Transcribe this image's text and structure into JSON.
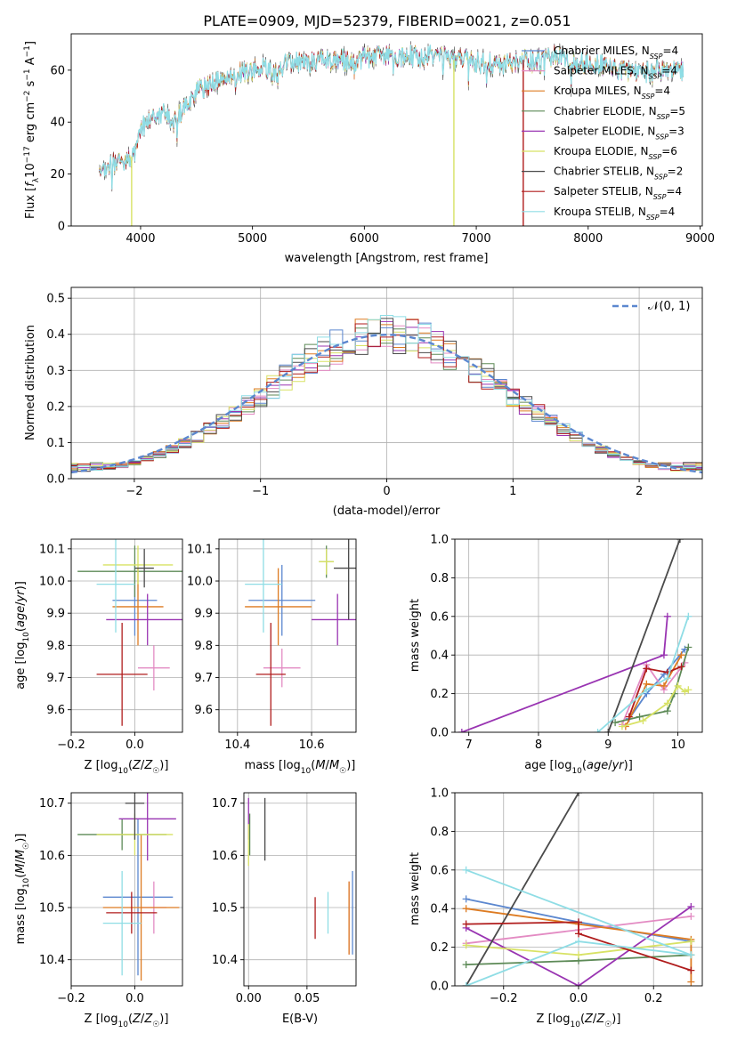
{
  "figure": {
    "title": "PLATE=0909, MJD=52379, FIBERID=0021, z=0.051"
  },
  "legend_series": [
    {
      "name": "Chabrier MILES, N",
      "sub": "SSP",
      "eq": "=4",
      "color": "#5b87cf"
    },
    {
      "name": "Salpeter MILES, N",
      "sub": "SSP",
      "eq": "=4",
      "color": "#e38bc3"
    },
    {
      "name": "Kroupa MILES, N",
      "sub": "SSP",
      "eq": "=4",
      "color": "#dd7b22"
    },
    {
      "name": "Chabrier ELODIE, N",
      "sub": "SSP",
      "eq": "=5",
      "color": "#5d8a57"
    },
    {
      "name": "Salpeter ELODIE, N",
      "sub": "SSP",
      "eq": "=3",
      "color": "#9934b2"
    },
    {
      "name": "Kroupa ELODIE, N",
      "sub": "SSP",
      "eq": "=6",
      "color": "#d8e265"
    },
    {
      "name": "Chabrier STELIB, N",
      "sub": "SSP",
      "eq": "=2",
      "color": "#4a4a4a"
    },
    {
      "name": "Salpeter STELIB, N",
      "sub": "SSP",
      "eq": "=4",
      "color": "#b01c1c"
    },
    {
      "name": "Kroupa STELIB, N",
      "sub": "SSP",
      "eq": "=4",
      "color": "#8fdde5"
    }
  ],
  "chart_data": [
    {
      "id": "spectrum",
      "type": "line",
      "xlabel": "wavelength [Angstrom, rest frame]",
      "ylabel": "Flux [f_λ 10^-17 erg cm^-2 s^-1 A^-1]",
      "xlim": [
        3380,
        9020
      ],
      "ylim": [
        0,
        74
      ],
      "xticks": [
        4000,
        5000,
        6000,
        7000,
        8000,
        9000
      ],
      "yticks": [
        0,
        20,
        40,
        60
      ],
      "continuum": [
        [
          3630,
          19
        ],
        [
          3700,
          23
        ],
        [
          3800,
          25
        ],
        [
          3900,
          26
        ],
        [
          3960,
          28
        ],
        [
          4000,
          38
        ],
        [
          4100,
          42
        ],
        [
          4200,
          43
        ],
        [
          4300,
          40
        ],
        [
          4400,
          46
        ],
        [
          4500,
          52
        ],
        [
          4600,
          54
        ],
        [
          4700,
          56
        ],
        [
          4800,
          57
        ],
        [
          4900,
          59
        ],
        [
          5000,
          60
        ],
        [
          5100,
          61
        ],
        [
          5200,
          58
        ],
        [
          5300,
          62
        ],
        [
          5400,
          63
        ],
        [
          5500,
          63
        ],
        [
          5600,
          64
        ],
        [
          5700,
          64
        ],
        [
          5800,
          64
        ],
        [
          5900,
          62
        ],
        [
          6000,
          65
        ],
        [
          6100,
          65
        ],
        [
          6200,
          66
        ],
        [
          6300,
          65
        ],
        [
          6400,
          66
        ],
        [
          6500,
          65
        ],
        [
          6600,
          66
        ],
        [
          6700,
          65
        ],
        [
          6800,
          64
        ],
        [
          6900,
          64
        ],
        [
          7000,
          63
        ],
        [
          7100,
          63
        ],
        [
          7200,
          62
        ],
        [
          7300,
          63
        ],
        [
          7400,
          64
        ],
        [
          7500,
          64
        ],
        [
          7600,
          64
        ],
        [
          7700,
          66
        ],
        [
          7800,
          64
        ],
        [
          7900,
          62
        ],
        [
          8000,
          63
        ],
        [
          8100,
          62
        ],
        [
          8200,
          61
        ],
        [
          8300,
          60
        ],
        [
          8400,
          60
        ],
        [
          8500,
          59
        ],
        [
          8600,
          60
        ],
        [
          8700,
          60
        ],
        [
          8800,
          60
        ],
        [
          8850,
          60
        ]
      ],
      "dropouts": [
        {
          "series": "Kroupa ELODIE, N",
          "x": 3920
        },
        {
          "series": "Kroupa ELODIE, N",
          "x": 6800
        },
        {
          "series": "Salpeter STELIB, N",
          "x": 7420
        }
      ]
    },
    {
      "id": "residual-histogram",
      "type": "histogram",
      "xlabel": "(data-model)/error",
      "ylabel": "Normed distribution",
      "xlim": [
        -2.5,
        2.5
      ],
      "ylim": [
        0,
        0.53
      ],
      "xticks": [
        -2,
        -1,
        0,
        1,
        2
      ],
      "yticks": [
        0.0,
        0.1,
        0.2,
        0.3,
        0.4,
        0.5
      ],
      "bin_width": 0.1,
      "reference_curve": {
        "name": "N(0,1)",
        "type": "gaussian",
        "mean": 0,
        "sigma": 1,
        "style": "dashed"
      }
    },
    {
      "id": "age-vs-Z",
      "type": "errorbar",
      "xlabel": "Z [log10(Z/Z☉)]",
      "ylabel": "age [log10(age/yr)]",
      "xlim": [
        -0.2,
        0.15
      ],
      "ylim": [
        9.53,
        10.13
      ],
      "xticks": [
        -0.2,
        0.0
      ],
      "yticks": [
        9.6,
        9.7,
        9.8,
        9.9,
        10.0,
        10.1
      ],
      "points": [
        {
          "series": 0,
          "x": 0.0,
          "y": 9.94,
          "xerr": 0.07,
          "yerr": 0.11
        },
        {
          "series": 1,
          "x": 0.06,
          "y": 9.73,
          "xerr": 0.05,
          "yerr": 0.07
        },
        {
          "series": 2,
          "x": 0.01,
          "y": 9.92,
          "xerr": 0.08,
          "yerr": 0.12
        },
        {
          "series": 3,
          "x": 0.0,
          "y": 10.03,
          "xerr": 0.18,
          "yerr": 0.08
        },
        {
          "series": 4,
          "x": 0.04,
          "y": 9.88,
          "xerr": 0.13,
          "yerr": 0.08
        },
        {
          "series": 5,
          "x": 0.01,
          "y": 10.05,
          "xerr": 0.11,
          "yerr": 0.06
        },
        {
          "series": 6,
          "x": 0.03,
          "y": 10.04,
          "xerr": 0.03,
          "yerr": 0.06
        },
        {
          "series": 7,
          "x": -0.04,
          "y": 9.71,
          "xerr": 0.08,
          "yerr": 0.16
        },
        {
          "series": 8,
          "x": -0.06,
          "y": 9.99,
          "xerr": 0.06,
          "yerr": 0.15
        }
      ]
    },
    {
      "id": "age-vs-mass",
      "type": "errorbar",
      "xlabel": "mass [log10(M/M☉)]",
      "ylabel": "",
      "xlim": [
        10.35,
        10.72
      ],
      "ylim": [
        9.53,
        10.13
      ],
      "xticks": [
        10.4,
        10.6
      ],
      "yticks": [
        9.6,
        9.7,
        9.8,
        9.9,
        10.0,
        10.1
      ],
      "points": [
        {
          "series": 0,
          "x": 10.52,
          "y": 9.94,
          "xerr": 0.09,
          "yerr": 0.11
        },
        {
          "series": 1,
          "x": 10.52,
          "y": 9.73,
          "xerr": 0.05,
          "yerr": 0.06
        },
        {
          "series": 2,
          "x": 10.51,
          "y": 9.92,
          "xerr": 0.09,
          "yerr": 0.12
        },
        {
          "series": 3,
          "x": 10.64,
          "y": 10.06,
          "xerr": 0.02,
          "yerr": 0.05
        },
        {
          "series": 4,
          "x": 10.67,
          "y": 9.88,
          "xerr": 0.07,
          "yerr": 0.08
        },
        {
          "series": 5,
          "x": 10.64,
          "y": 10.06,
          "xerr": 0.02,
          "yerr": 0.04
        },
        {
          "series": 6,
          "x": 10.7,
          "y": 10.04,
          "xerr": 0.04,
          "yerr": 0.16
        },
        {
          "series": 7,
          "x": 10.49,
          "y": 9.71,
          "xerr": 0.04,
          "yerr": 0.16
        },
        {
          "series": 8,
          "x": 10.47,
          "y": 9.99,
          "xerr": 0.05,
          "yerr": 0.15
        }
      ]
    },
    {
      "id": "mass-weight-vs-age",
      "type": "line",
      "xlabel": "age [log10(age/yr)]",
      "ylabel": "mass weight",
      "xlim": [
        6.8,
        10.35
      ],
      "ylim": [
        0.0,
        1.0
      ],
      "xticks": [
        7,
        8,
        9,
        10
      ],
      "yticks": [
        0.0,
        0.2,
        0.4,
        0.6,
        0.8,
        1.0
      ],
      "series": [
        {
          "series": 0,
          "points": [
            [
              9.3,
              0.07
            ],
            [
              9.55,
              0.2
            ],
            [
              9.8,
              0.3
            ],
            [
              10.1,
              0.43
            ]
          ]
        },
        {
          "series": 1,
          "points": [
            [
              9.2,
              0.04
            ],
            [
              9.55,
              0.35
            ],
            [
              9.8,
              0.22
            ],
            [
              10.1,
              0.36
            ]
          ]
        },
        {
          "series": 2,
          "points": [
            [
              9.25,
              0.03
            ],
            [
              9.55,
              0.25
            ],
            [
              9.8,
              0.24
            ],
            [
              10.05,
              0.4
            ]
          ]
        },
        {
          "series": 3,
          "points": [
            [
              9.1,
              0.05
            ],
            [
              9.45,
              0.08
            ],
            [
              9.85,
              0.11
            ],
            [
              9.95,
              0.2
            ],
            [
              10.15,
              0.44
            ]
          ]
        },
        {
          "series": 4,
          "points": [
            [
              9.85,
              0.6
            ],
            [
              9.8,
              0.4
            ],
            [
              6.9,
              0.0
            ]
          ]
        },
        {
          "series": 5,
          "points": [
            [
              9.2,
              0.03
            ],
            [
              9.5,
              0.06
            ],
            [
              9.85,
              0.15
            ],
            [
              10.0,
              0.24
            ],
            [
              10.1,
              0.21
            ],
            [
              10.15,
              0.22
            ]
          ]
        },
        {
          "series": 6,
          "points": [
            [
              9.0,
              0.0
            ],
            [
              10.03,
              1.0
            ]
          ]
        },
        {
          "series": 7,
          "points": [
            [
              9.3,
              0.08
            ],
            [
              9.55,
              0.33
            ],
            [
              9.85,
              0.31
            ],
            [
              10.05,
              0.34
            ]
          ]
        },
        {
          "series": 8,
          "points": [
            [
              8.85,
              0.0
            ],
            [
              9.55,
              0.22
            ],
            [
              9.85,
              0.28
            ],
            [
              10.15,
              0.6
            ]
          ]
        }
      ]
    },
    {
      "id": "mass-vs-Z",
      "type": "errorbar",
      "xlabel": "Z [log10(Z/Z☉)]",
      "ylabel": "mass [log10(M/M☉)]",
      "xlim": [
        -0.2,
        0.15
      ],
      "ylim": [
        10.35,
        10.72
      ],
      "xticks": [
        -0.2,
        0.0
      ],
      "yticks": [
        10.4,
        10.5,
        10.6,
        10.7
      ],
      "points": [
        {
          "series": 0,
          "x": 0.01,
          "y": 10.52,
          "xerr": 0.11,
          "yerr": 0.15
        },
        {
          "series": 1,
          "x": 0.06,
          "y": 10.5,
          "xerr": 0.04,
          "yerr": 0.05
        },
        {
          "series": 2,
          "x": 0.02,
          "y": 10.5,
          "xerr": 0.12,
          "yerr": 0.14
        },
        {
          "series": 3,
          "x": -0.04,
          "y": 10.64,
          "xerr": 0.14,
          "yerr": 0.03
        },
        {
          "series": 4,
          "x": 0.04,
          "y": 10.67,
          "xerr": 0.09,
          "yerr": 0.08
        },
        {
          "series": 5,
          "x": 0.0,
          "y": 10.64,
          "xerr": 0.12,
          "yerr": 0.04
        },
        {
          "series": 6,
          "x": 0.0,
          "y": 10.7,
          "xerr": 0.03,
          "yerr": 0.07
        },
        {
          "series": 7,
          "x": -0.01,
          "y": 10.49,
          "xerr": 0.08,
          "yerr": 0.04
        },
        {
          "series": 8,
          "x": -0.04,
          "y": 10.47,
          "xerr": 0.06,
          "yerr": 0.1
        }
      ]
    },
    {
      "id": "mass-vs-EBV",
      "type": "errorbar",
      "xlabel": "E(B-V)",
      "ylabel": "",
      "xlim": [
        -0.004,
        0.092
      ],
      "ylim": [
        10.35,
        10.72
      ],
      "xticks": [
        0.0,
        0.05
      ],
      "yticks": [
        10.4,
        10.5,
        10.6,
        10.7
      ],
      "points": [
        {
          "series": 0,
          "x": 0.089,
          "y": 10.49,
          "yerr": 0.08
        },
        {
          "series": 1,
          "x": 0.086,
          "y": 10.48,
          "yerr": 0.07
        },
        {
          "series": 2,
          "x": 0.086,
          "y": 10.48,
          "yerr": 0.07
        },
        {
          "series": 3,
          "x": 0.001,
          "y": 10.64,
          "yerr": 0.04
        },
        {
          "series": 4,
          "x": 0.0,
          "y": 10.67,
          "yerr": 0.04
        },
        {
          "series": 5,
          "x": 0.0,
          "y": 10.62,
          "yerr": 0.04
        },
        {
          "series": 6,
          "x": 0.014,
          "y": 10.65,
          "yerr": 0.06
        },
        {
          "series": 7,
          "x": 0.057,
          "y": 10.48,
          "yerr": 0.04
        },
        {
          "series": 8,
          "x": 0.068,
          "y": 10.49,
          "yerr": 0.04
        }
      ]
    },
    {
      "id": "mass-weight-vs-Z",
      "type": "line",
      "xlabel": "Z [log10(Z/Z☉)]",
      "ylabel": "mass weight",
      "xlim": [
        -0.33,
        0.33
      ],
      "ylim": [
        0.0,
        1.0
      ],
      "xticks": [
        -0.2,
        0.0,
        0.2
      ],
      "yticks": [
        0.0,
        0.2,
        0.4,
        0.6,
        0.8,
        1.0
      ],
      "series": [
        {
          "series": 0,
          "points": [
            [
              -0.3,
              0.45
            ],
            [
              0.0,
              0.33
            ],
            [
              0.3,
              0.23
            ]
          ]
        },
        {
          "series": 1,
          "points": [
            [
              -0.3,
              0.22
            ],
            [
              0.0,
              0.29
            ],
            [
              0.3,
              0.36
            ]
          ]
        },
        {
          "series": 2,
          "points": [
            [
              -0.3,
              0.4
            ],
            [
              0.0,
              0.32
            ],
            [
              0.3,
              0.24
            ],
            [
              0.3,
              0.02
            ]
          ]
        },
        {
          "series": 3,
          "points": [
            [
              -0.3,
              0.11
            ],
            [
              0.0,
              0.13
            ],
            [
              0.3,
              0.16
            ]
          ]
        },
        {
          "series": 4,
          "points": [
            [
              -0.3,
              0.3
            ],
            [
              0.0,
              0.0
            ],
            [
              0.3,
              0.41
            ]
          ]
        },
        {
          "series": 5,
          "points": [
            [
              -0.3,
              0.21
            ],
            [
              0.0,
              0.16
            ],
            [
              0.3,
              0.23
            ]
          ]
        },
        {
          "series": 6,
          "points": [
            [
              -0.3,
              0.0
            ],
            [
              0.0,
              1.0
            ]
          ]
        },
        {
          "series": 7,
          "points": [
            [
              -0.3,
              0.32
            ],
            [
              0.0,
              0.33
            ],
            [
              0.0,
              0.27
            ],
            [
              0.3,
              0.08
            ]
          ]
        },
        {
          "series": 8,
          "points": [
            [
              -0.3,
              0.0
            ],
            [
              0.0,
              0.23
            ],
            [
              0.3,
              0.16
            ],
            [
              -0.3,
              0.6
            ]
          ]
        }
      ]
    }
  ]
}
